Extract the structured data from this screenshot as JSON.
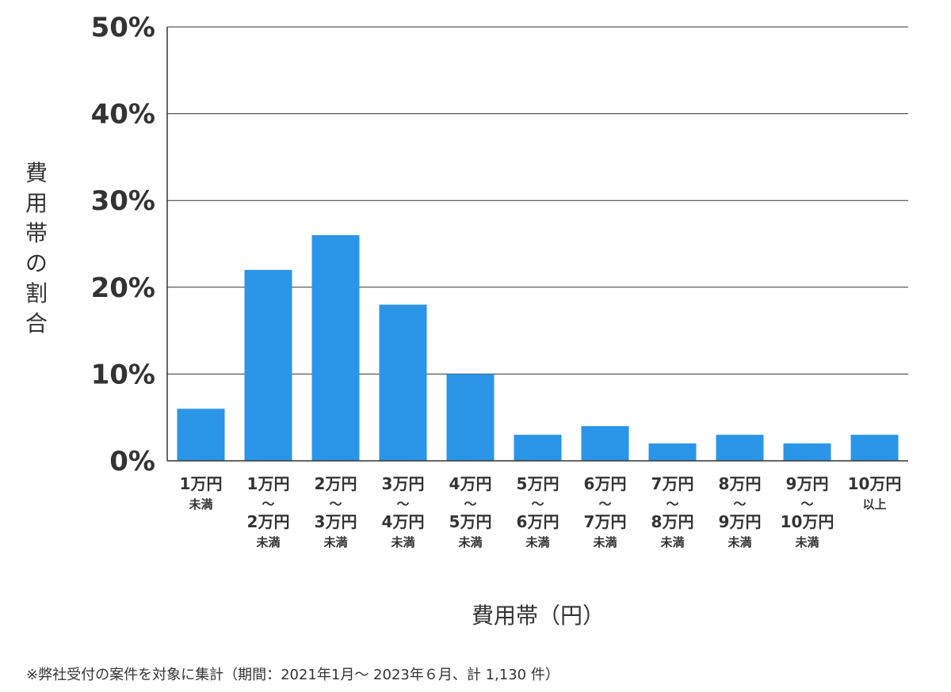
{
  "chart_data": {
    "type": "bar",
    "categories": [
      [
        "1万円",
        "未満"
      ],
      [
        "1万円",
        "〜",
        "2万円",
        "未満"
      ],
      [
        "2万円",
        "〜",
        "3万円",
        "未満"
      ],
      [
        "3万円",
        "〜",
        "4万円",
        "未満"
      ],
      [
        "4万円",
        "〜",
        "5万円",
        "未満"
      ],
      [
        "5万円",
        "〜",
        "6万円",
        "未満"
      ],
      [
        "6万円",
        "〜",
        "7万円",
        "未満"
      ],
      [
        "7万円",
        "〜",
        "8万円",
        "未満"
      ],
      [
        "8万円",
        "〜",
        "9万円",
        "未満"
      ],
      [
        "9万円",
        "〜",
        "10万円",
        "未満"
      ],
      [
        "10万円",
        "以上"
      ]
    ],
    "values": [
      6,
      22,
      26,
      18,
      10,
      3,
      4,
      2,
      3,
      2,
      3
    ],
    "unit": "%",
    "ylim": [
      0,
      50
    ],
    "yticks": [
      0,
      10,
      20,
      30,
      40,
      50
    ],
    "ylabel": "費用帯の割合",
    "xlabel": "費用帯（円）",
    "grid": true,
    "bar_color": "#2b95e8"
  },
  "footnote": "※弊社受付の案件を対象に集計（期間：2021年1月～ 2023年６月、計 1,130 件）"
}
